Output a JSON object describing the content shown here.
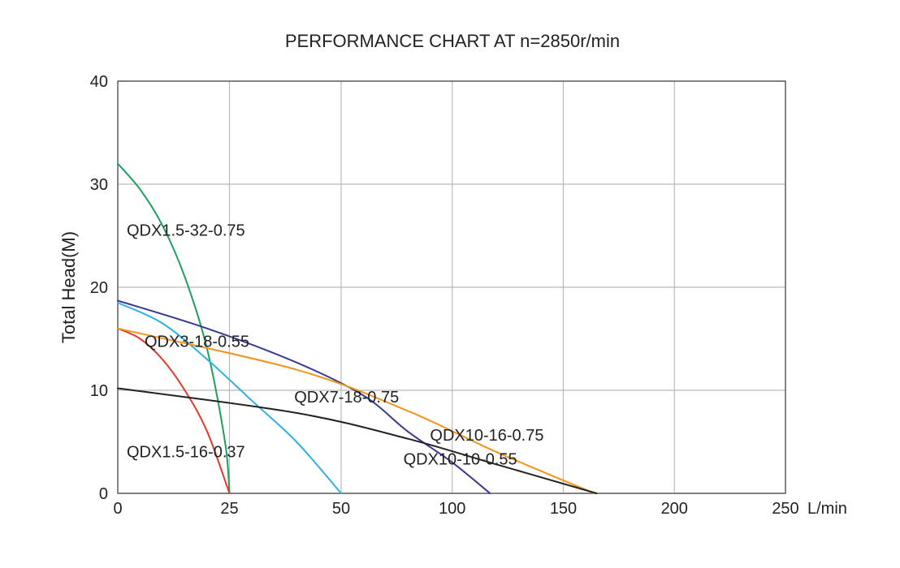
{
  "chart_data": {
    "type": "line",
    "title": "PERFORMANCE CHART AT n=2850r/min",
    "xlabel": "L/min",
    "ylabel": "Total Head(M)",
    "xlim": [
      0,
      250
    ],
    "ylim": [
      0,
      40
    ],
    "x_ticks": [
      0,
      25,
      50,
      100,
      150,
      200,
      250
    ],
    "y_ticks": [
      0,
      10,
      20,
      30,
      40
    ],
    "grid": true,
    "series": [
      {
        "name": "QDX1.5-32-0.75",
        "color": "#1aa05a",
        "x": [
          0,
          5,
          10,
          15,
          20,
          24,
          25
        ],
        "y": [
          32,
          29.5,
          26,
          21,
          14,
          5,
          0
        ]
      },
      {
        "name": "QDX3-18-0.55",
        "color": "#2eb0e4",
        "x": [
          0,
          10,
          20,
          30,
          40,
          50
        ],
        "y": [
          18.5,
          16.5,
          13,
          9,
          5,
          0
        ]
      },
      {
        "name": "QDX1.5-16-0.37",
        "color": "#e03a2a",
        "x": [
          0,
          5,
          10,
          15,
          20,
          25
        ],
        "y": [
          16,
          15,
          13,
          10,
          6,
          0
        ]
      },
      {
        "name": "QDX7-18-0.75",
        "color": "#3a3a8f",
        "x": [
          0,
          20,
          40,
          60,
          80,
          100,
          117
        ],
        "y": [
          18.7,
          16,
          12.7,
          9.5,
          6,
          3,
          0
        ]
      },
      {
        "name": "QDX10-16-0.75",
        "color": "#f0961e",
        "x": [
          0,
          40,
          80,
          120,
          164
        ],
        "y": [
          16,
          12,
          8,
          4,
          0
        ]
      },
      {
        "name": "QDX10-10-0.55",
        "color": "#222222",
        "x": [
          0,
          40,
          80,
          120,
          165
        ],
        "y": [
          10.2,
          7.8,
          5.3,
          2.8,
          0
        ]
      }
    ],
    "labels": [
      {
        "text": "QDX1.5-32-0.75",
        "x": 2,
        "y": 25
      },
      {
        "text": "QDX3-18-0.55",
        "x": 6,
        "y": 14.2
      },
      {
        "text": "QDX7-18-0.75",
        "x": 39.5,
        "y": 8.8
      },
      {
        "text": "QDX10-16-0.75",
        "x": 90,
        "y": 5.1
      },
      {
        "text": "QDX10-10-0.55",
        "x": 78,
        "y": 2.8
      },
      {
        "text": "QDX1.5-16-0.37",
        "x": 2,
        "y": 3.5
      }
    ]
  }
}
